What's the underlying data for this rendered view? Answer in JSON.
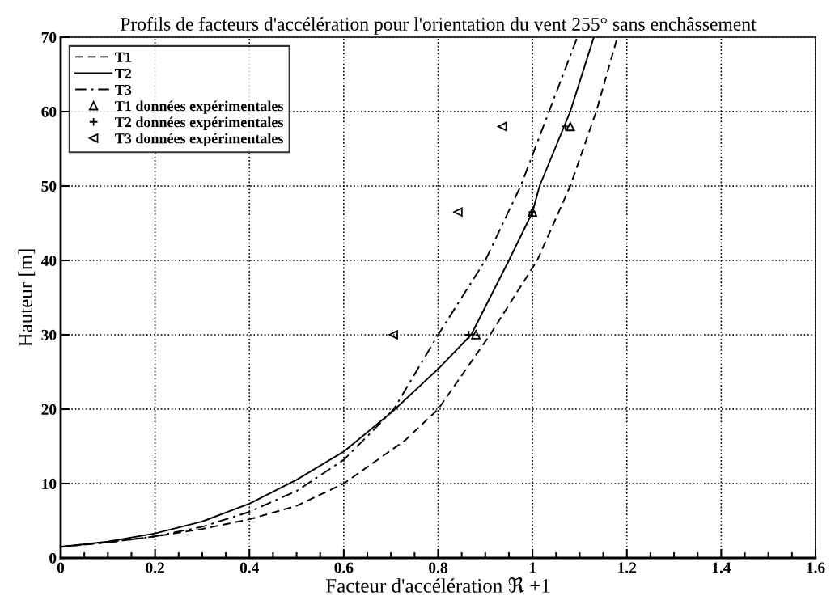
{
  "chart_data": {
    "type": "line",
    "title": "Profils de facteurs d'accélération pour l'orientation du vent 255° sans enchâssement",
    "xlabel": "Facteur d'accélération ℜ +1",
    "ylabel": "Hauteur [m]",
    "xlim": [
      0,
      1.6
    ],
    "xticks": [
      0,
      0.2,
      0.4,
      0.6,
      0.8,
      1,
      1.2,
      1.4,
      1.6
    ],
    "ylim": [
      0,
      70
    ],
    "yticks": [
      0,
      10,
      20,
      30,
      40,
      50,
      60,
      70
    ],
    "grid": true,
    "legend": "top left",
    "series": [
      {
        "name": "T1",
        "color": "#000000",
        "line_style": "dashed",
        "marker": "none",
        "x": [
          0,
          0.1,
          0.2,
          0.3,
          0.4,
          0.5,
          0.6,
          0.73,
          0.8,
          0.91,
          1.01,
          1.08,
          1.135,
          1.18
        ],
        "values": [
          1.5,
          2.1,
          2.9,
          3.9,
          5.2,
          7,
          10,
          15.8,
          20,
          30,
          40,
          50,
          60,
          70
        ]
      },
      {
        "name": "T2",
        "color": "#000000",
        "line_style": "solid",
        "marker": "none",
        "x": [
          0,
          0.1,
          0.2,
          0.3,
          0.4,
          0.5,
          0.6,
          0.7,
          0.8,
          0.87,
          0.95,
          1.0,
          1.015,
          1.08,
          1.13
        ],
        "values": [
          1.5,
          2.2,
          3.3,
          4.9,
          7.3,
          10.5,
          14.3,
          19.5,
          25.4,
          30,
          40,
          46.5,
          50,
          60,
          70
        ]
      },
      {
        "name": "T3",
        "color": "#000000",
        "line_style": "dashdot",
        "marker": "none",
        "x": [
          0,
          0.1,
          0.2,
          0.3,
          0.4,
          0.5,
          0.6,
          0.66,
          0.706,
          0.8,
          0.9,
          0.975,
          1.035,
          1.095
        ],
        "values": [
          1.5,
          2.1,
          2.9,
          4.2,
          6.2,
          9,
          13.2,
          17,
          20,
          30,
          40,
          50,
          60,
          70
        ]
      },
      {
        "name": "T1 données expérimentales",
        "type": "scatter",
        "color": "#000000",
        "marker": "triangle",
        "x": [
          0.88,
          1.0,
          1.08
        ],
        "values": [
          30,
          46.5,
          58
        ]
      },
      {
        "name": "T2 données expérimentales",
        "type": "scatter",
        "color": "#000000",
        "marker": "cross",
        "x": [
          0.865,
          1.0,
          1.07
        ],
        "values": [
          30,
          46.5,
          58
        ]
      },
      {
        "name": "T3 données expérimentales",
        "type": "scatter",
        "color": "#000000",
        "marker": "triangle_left",
        "x": [
          0.705,
          0.842,
          0.936
        ],
        "values": [
          30,
          46.5,
          58
        ]
      }
    ]
  }
}
